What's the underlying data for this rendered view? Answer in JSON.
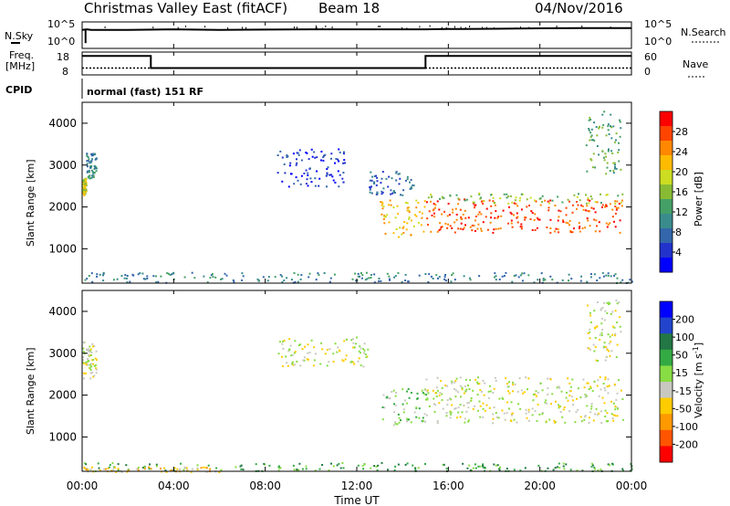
{
  "header": {
    "site": "Christmas Valley East (fitACF)",
    "beam": "Beam 18",
    "date": "04/Nov/2016"
  },
  "noise_panel": {
    "left_label": "N.Sky",
    "right_label": "N.Search",
    "ticks": [
      "10^5",
      "10^0"
    ],
    "right_ticks": [
      "10^5",
      "10^0"
    ]
  },
  "freq_panel": {
    "left_label_1": "Freq.",
    "left_label_2": "[MHz]",
    "ticks": [
      "18",
      "8"
    ],
    "right_ticks": [
      "60",
      "0"
    ],
    "right_label": "Nave"
  },
  "cpid": {
    "label": "CPID",
    "mode": "normal (fast) 151 RF"
  },
  "time_axis": {
    "tick_labels": [
      "00:00",
      "04:00",
      "08:00",
      "12:00",
      "16:00",
      "20:00",
      "00:00"
    ],
    "label": "Time UT"
  },
  "chart_data": [
    {
      "type": "line",
      "name": "noise",
      "x_hours": [
        0,
        0.2,
        0.4,
        2,
        4,
        6,
        8,
        10,
        12,
        14,
        15,
        16,
        18,
        20,
        22,
        24
      ],
      "sky_level": [
        0.7,
        0.72,
        0.7,
        0.7,
        0.72,
        0.7,
        0.71,
        0.72,
        0.72,
        0.72,
        0.72,
        0.73,
        0.74,
        0.76,
        0.77,
        0.77
      ],
      "search_level": [
        0.3,
        0.3,
        0.3,
        0.3,
        0.3,
        0.3,
        0.3,
        0.3,
        0.3,
        0.3,
        0.3,
        0.3,
        0.3,
        0.3,
        0.3,
        0.3
      ]
    },
    {
      "type": "line",
      "name": "frequency",
      "x_hours": [
        0,
        3,
        3,
        15,
        15,
        24
      ],
      "freq_mhz": [
        16.3,
        16.3,
        11,
        11,
        16.3,
        16.3
      ],
      "nave_x": [
        0,
        24
      ],
      "nave": [
        18,
        18
      ]
    },
    {
      "type": "heatmap",
      "title": "Power",
      "xlabel": "",
      "ylabel": "Slant Range [km]",
      "xlim": [
        0,
        24
      ],
      "ylim": [
        180,
        4500
      ],
      "y_ticks": [
        1000,
        2000,
        3000,
        4000
      ],
      "colorbar": {
        "label": "Power [dB]",
        "ticks": [
          "28",
          "24",
          "20",
          "16",
          "12",
          "8",
          "4"
        ],
        "colors": [
          "#ff0000",
          "#ff4400",
          "#ff8800",
          "#ffbb00",
          "#ccdd22",
          "#88bb33",
          "#44a066",
          "#3a8c8c",
          "#3366aa",
          "#2233cc",
          "#0000ff"
        ]
      },
      "regions": [
        {
          "x": [
            0.0,
            0.15
          ],
          "y": [
            2300,
            2700
          ],
          "level": 4
        },
        {
          "x": [
            0.15,
            0.6
          ],
          "y": [
            2700,
            3300
          ],
          "level": 7
        },
        {
          "x": [
            8.5,
            11.5
          ],
          "y": [
            2500,
            3400
          ],
          "level": 9
        },
        {
          "x": [
            12.5,
            14.5
          ],
          "y": [
            2300,
            2900
          ],
          "level": 8
        },
        {
          "x": [
            13.0,
            15.0
          ],
          "y": [
            1300,
            2200
          ],
          "level": 3
        },
        {
          "x": [
            15.0,
            23.6
          ],
          "y": [
            1400,
            2200
          ],
          "level": 1
        },
        {
          "x": [
            15.0,
            23.6
          ],
          "y": [
            2100,
            2350
          ],
          "level": 5
        },
        {
          "x": [
            22.0,
            23.5
          ],
          "y": [
            2800,
            4300
          ],
          "level": 6
        },
        {
          "x": [
            0.0,
            24.0
          ],
          "y": [
            200,
            450
          ],
          "level": 7
        }
      ]
    },
    {
      "type": "heatmap",
      "title": "Velocity",
      "xlabel": "Time UT",
      "ylabel": "Slant Range [km]",
      "xlim": [
        0,
        24
      ],
      "ylim": [
        180,
        4500
      ],
      "y_ticks": [
        1000,
        2000,
        3000,
        4000
      ],
      "colorbar": {
        "label": "Velocity [m s^-1]",
        "ticks": [
          "200",
          "100",
          "50",
          "15",
          "-15",
          "-50",
          "-100",
          "-200"
        ],
        "colors": [
          "#0000ff",
          "#2244cc",
          "#227744",
          "#33aa44",
          "#88dd44",
          "#c8c8c0",
          "#ffcc00",
          "#ff9900",
          "#ff5500",
          "#ff0000"
        ]
      },
      "regions": [
        {
          "x": [
            0.0,
            0.6
          ],
          "y": [
            2400,
            3300
          ],
          "level": 5
        },
        {
          "x": [
            8.5,
            12.5
          ],
          "y": [
            2700,
            3400
          ],
          "level": 5
        },
        {
          "x": [
            13.0,
            15.0
          ],
          "y": [
            1300,
            2200
          ],
          "level": 4
        },
        {
          "x": [
            15.0,
            23.6
          ],
          "y": [
            1350,
            2450
          ],
          "level": 5
        },
        {
          "x": [
            22.0,
            23.5
          ],
          "y": [
            2800,
            4300
          ],
          "level": 5
        },
        {
          "x": [
            0.0,
            24.0
          ],
          "y": [
            200,
            400
          ],
          "level": 3
        },
        {
          "x": [
            0.0,
            6.0
          ],
          "y": [
            180,
            300
          ],
          "level": 6
        }
      ]
    }
  ]
}
